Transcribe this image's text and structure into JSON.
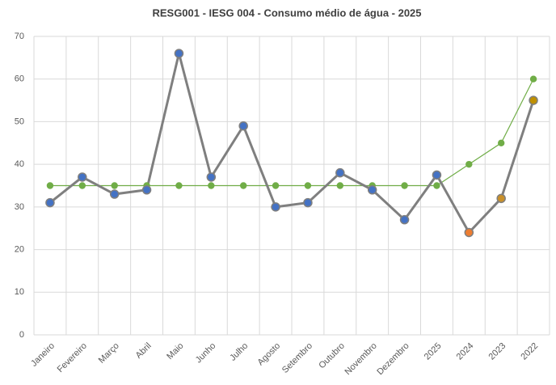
{
  "chart_data": {
    "type": "line",
    "title": "RESG001 - IESG 004 - Consumo médio de água - 2025",
    "categories": [
      "Janeiro",
      "Fevereiro",
      "Março",
      "Abril",
      "Maio",
      "Junho",
      "Julho",
      "Agosto",
      "Setembro",
      "Outubro",
      "Novembro",
      "Dezembro",
      "2025",
      "2024",
      "2023",
      "2022"
    ],
    "series": [
      {
        "color": "#7f7f7f",
        "values": [
          31,
          37,
          33,
          34,
          66,
          37,
          49,
          30,
          31,
          38,
          34,
          27,
          37.5,
          24,
          32,
          55
        ],
        "marker_colors": [
          "#4472c4",
          "#4472c4",
          "#4472c4",
          "#4472c4",
          "#4472c4",
          "#4472c4",
          "#4472c4",
          "#4472c4",
          "#4472c4",
          "#4472c4",
          "#4472c4",
          "#4472c4",
          "#4472c4",
          "#ed7d31",
          "#c9902a",
          "#bf9000"
        ]
      },
      {
        "color": "#70ad47",
        "values": [
          35,
          35,
          35,
          35,
          35,
          35,
          35,
          35,
          35,
          35,
          35,
          35,
          35,
          40,
          45,
          60
        ]
      }
    ],
    "ylim": [
      0,
      70
    ],
    "yticks": [
      0,
      10,
      20,
      30,
      40,
      50,
      60,
      70
    ],
    "grid": true
  }
}
